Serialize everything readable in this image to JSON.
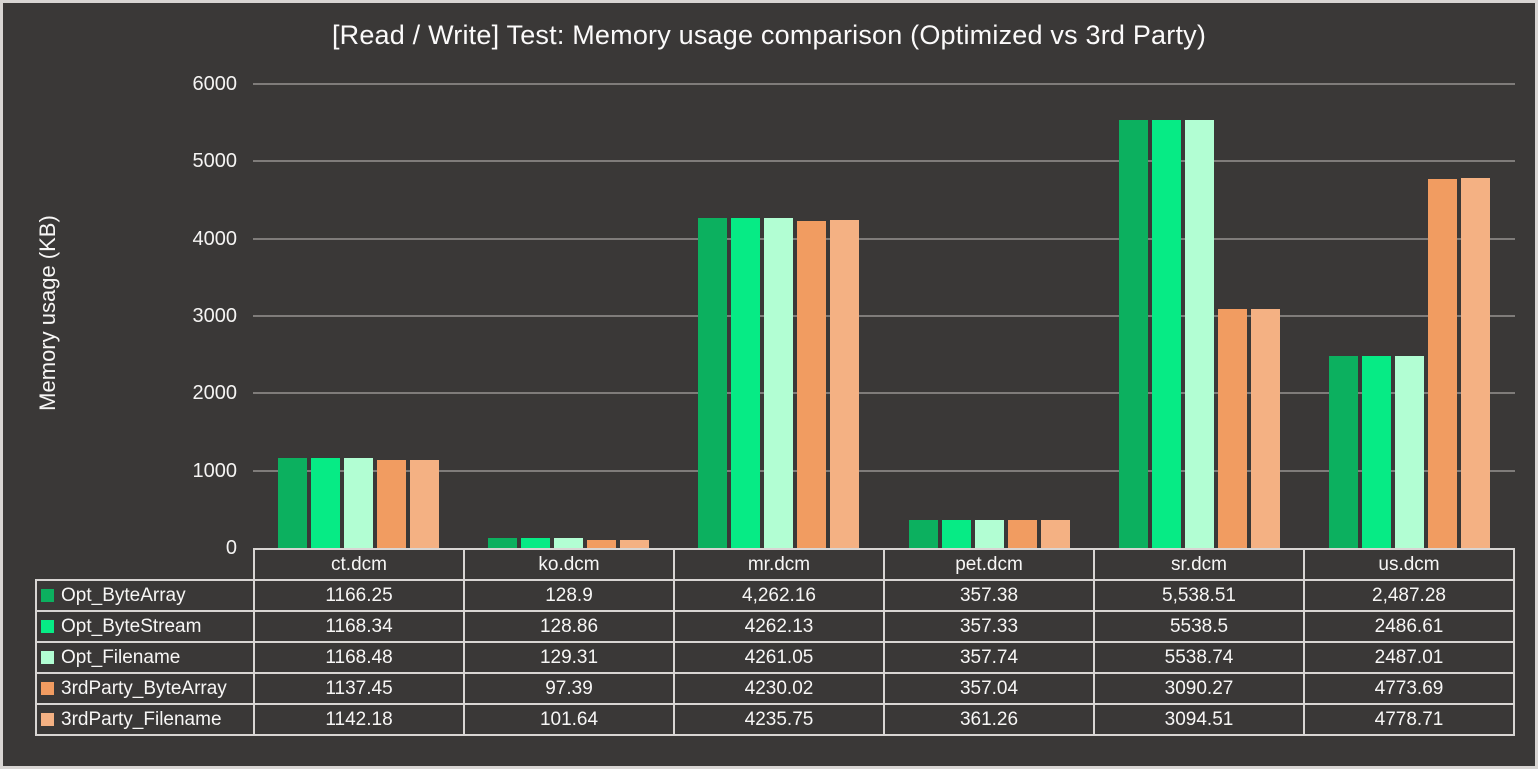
{
  "title": "[Read / Write] Test: Memory usage comparison (Optimized vs 3rd Party)",
  "y_axis": {
    "label": "Memory usage (KB)"
  },
  "colors": {
    "background": "#3a3837",
    "frame_border": "#d8d5d3",
    "gridline": "#7f7c7a",
    "table_border": "#d8d5d3",
    "text": "#f7f6f5"
  },
  "chart_data": {
    "type": "bar",
    "title": "[Read / Write] Test: Memory usage comparison (Optimized vs 3rd Party)",
    "xlabel": "",
    "ylabel": "Memory usage (KB)",
    "ylim": [
      0,
      6000
    ],
    "yticks": [
      0,
      1000,
      2000,
      3000,
      4000,
      5000,
      6000
    ],
    "grid": true,
    "legend_position": "table-rows-left",
    "categories": [
      "ct.dcm",
      "ko.dcm",
      "mr.dcm",
      "pet.dcm",
      "sr.dcm",
      "us.dcm"
    ],
    "series": [
      {
        "name": "Opt_ByteArray",
        "color": "#0cb05f",
        "values": [
          1166.25,
          128.9,
          4262.16,
          357.38,
          5538.51,
          2487.28
        ]
      },
      {
        "name": "Opt_ByteStream",
        "color": "#06eb85",
        "values": [
          1168.34,
          128.86,
          4262.13,
          357.33,
          5538.5,
          2486.61
        ]
      },
      {
        "name": "Opt_Filename",
        "color": "#b2fed3",
        "values": [
          1168.48,
          129.31,
          4261.05,
          357.74,
          5538.74,
          2487.01
        ]
      },
      {
        "name": "3rdParty_ByteArray",
        "color": "#f19c61",
        "values": [
          1137.45,
          97.39,
          4230.02,
          357.04,
          3090.27,
          4773.69
        ]
      },
      {
        "name": "3rdParty_Filename",
        "color": "#f4b183",
        "values": [
          1142.18,
          101.64,
          4235.75,
          361.26,
          3094.51,
          4778.71
        ]
      }
    ]
  },
  "table": {
    "headers": [
      "ct.dcm",
      "ko.dcm",
      "mr.dcm",
      "pet.dcm",
      "sr.dcm",
      "us.dcm"
    ],
    "rows": [
      {
        "label": "Opt_ByteArray",
        "marker_color": "#0cb05f",
        "values": [
          "1166.25",
          "128.9",
          "4,262.16",
          "357.38",
          "5,538.51",
          "2,487.28"
        ]
      },
      {
        "label": "Opt_ByteStream",
        "marker_color": "#06eb85",
        "values": [
          "1168.34",
          "128.86",
          "4262.13",
          "357.33",
          "5538.5",
          "2486.61"
        ]
      },
      {
        "label": "Opt_Filename",
        "marker_color": "#b2fed3",
        "values": [
          "1168.48",
          "129.31",
          "4261.05",
          "357.74",
          "5538.74",
          "2487.01"
        ]
      },
      {
        "label": "3rdParty_ByteArray",
        "marker_color": "#f19c61",
        "values": [
          "1137.45",
          "97.39",
          "4230.02",
          "357.04",
          "3090.27",
          "4773.69"
        ]
      },
      {
        "label": "3rdParty_Filename",
        "marker_color": "#f4b183",
        "values": [
          "1142.18",
          "101.64",
          "4235.75",
          "361.26",
          "3094.51",
          "4778.71"
        ]
      }
    ]
  }
}
